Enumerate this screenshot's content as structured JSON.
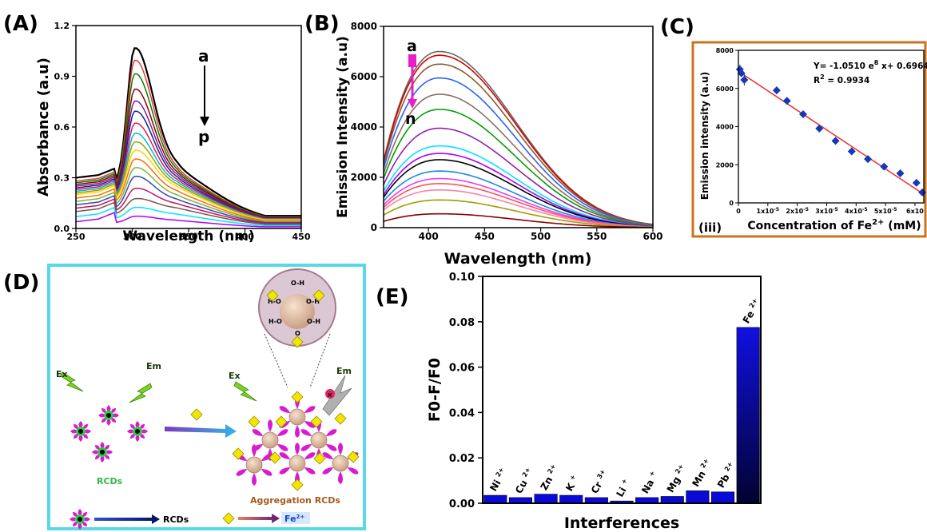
{
  "panels": {
    "A": {
      "label": "(A)",
      "arrow_top": "a",
      "arrow_bottom": "p"
    },
    "B": {
      "label": "(B)",
      "arrow_top": "a",
      "arrow_bottom": "n"
    },
    "C": {
      "label": "(C)",
      "sub_label": "(iii)",
      "equation": "Y= -1.0510 e",
      "equation_exp": "8",
      "equation_tail": " x+ 0.6964",
      "r2_base": "R",
      "r2_exp": "2",
      "r2_tail": " = 0.9934"
    },
    "D": {
      "label": "(D)",
      "ex": "Ex",
      "em": "Em",
      "rcds": "RCDs",
      "aggregation": "Aggregation RCDs",
      "legend_rcds": "RCDs",
      "legend_fe": "Fe",
      "legend_fe_sup": "2+"
    },
    "E": {
      "label": "(E)"
    }
  },
  "colors": {
    "A_curves": [
      "#000000",
      "#e53935",
      "#008000",
      "#8b0000",
      "#7a1fa2",
      "#1a237e",
      "#d81b60",
      "#00bcd4",
      "#9e9e00",
      "#ffd600",
      "#ff6d00",
      "#7cb342",
      "#3949ab",
      "#c51162",
      "#795548",
      "#00e5ff",
      "#aa00ff"
    ],
    "B_curves": [
      "#666666",
      "#d50000",
      "#8b5a2b",
      "#2962ff",
      "#8d6e63",
      "#00a000",
      "#8e24aa",
      "#00e5ff",
      "#aa00ff",
      "#000000",
      "#1e88e5",
      "#e040fb",
      "#ff5252",
      "#ff80ab",
      "#9e9e00",
      "#8b0000"
    ],
    "fit_line": "#e53935",
    "points": "#1537b8",
    "bar": "#0a0ad8",
    "frame_C": "#c8741f",
    "frame_D": "#57d9e6"
  },
  "chart_data": [
    {
      "panel": "A",
      "type": "line",
      "xlabel": "Wavelength (nm)",
      "ylabel": "Absorbance (a.u)",
      "xlim": [
        250,
        450
      ],
      "ylim": [
        0.0,
        1.2
      ],
      "xticks": [
        "250",
        "300",
        "350",
        "400",
        "450"
      ],
      "yticks": [
        "0.0",
        "0.3",
        "0.6",
        "0.9",
        "1.2"
      ],
      "peak_x": 302,
      "series": [
        {
          "base": 0.3,
          "peak": 1.05
        },
        {
          "base": 0.28,
          "peak": 0.98
        },
        {
          "base": 0.27,
          "peak": 0.9
        },
        {
          "base": 0.26,
          "peak": 0.81
        },
        {
          "base": 0.25,
          "peak": 0.74
        },
        {
          "base": 0.24,
          "peak": 0.68
        },
        {
          "base": 0.23,
          "peak": 0.61
        },
        {
          "base": 0.22,
          "peak": 0.55
        },
        {
          "base": 0.21,
          "peak": 0.5
        },
        {
          "base": 0.2,
          "peak": 0.45
        },
        {
          "base": 0.18,
          "peak": 0.4
        },
        {
          "base": 0.16,
          "peak": 0.35
        },
        {
          "base": 0.14,
          "peak": 0.3
        },
        {
          "base": 0.12,
          "peak": 0.23
        },
        {
          "base": 0.1,
          "peak": 0.17
        },
        {
          "base": 0.07,
          "peak": 0.12
        },
        {
          "base": 0.04,
          "peak": 0.07
        }
      ]
    },
    {
      "panel": "B",
      "type": "line",
      "xlabel": "Wavelength (nm)",
      "ylabel": "Emission Intensity (a.u)",
      "xlim": [
        360,
        600
      ],
      "ylim": [
        0,
        8000
      ],
      "xticks": [
        "400",
        "450",
        "500",
        "550",
        "600"
      ],
      "yticks": [
        "0",
        "2000",
        "4000",
        "6000",
        "8000"
      ],
      "peak_x": 410,
      "series": [
        {
          "peak": 7000,
          "start": 2650
        },
        {
          "peak": 6850,
          "start": 2600
        },
        {
          "peak": 6500,
          "start": 2500
        },
        {
          "peak": 5950,
          "start": 2350
        },
        {
          "peak": 5300,
          "start": 2150
        },
        {
          "peak": 4700,
          "start": 1950
        },
        {
          "peak": 3950,
          "start": 1700
        },
        {
          "peak": 3250,
          "start": 1450
        },
        {
          "peak": 2950,
          "start": 1300
        },
        {
          "peak": 2700,
          "start": 1200
        },
        {
          "peak": 2250,
          "start": 1050
        },
        {
          "peak": 1950,
          "start": 900
        },
        {
          "peak": 1750,
          "start": 800
        },
        {
          "peak": 1500,
          "start": 700
        },
        {
          "peak": 1100,
          "start": 500
        },
        {
          "peak": 550,
          "start": 250
        }
      ]
    },
    {
      "panel": "C",
      "type": "scatter",
      "xlabel": "Concentration of Fe",
      "xlabel_sup": "2+",
      "xlabel_tail": " (mM)",
      "ylabel": "Emission intensity (a.u)",
      "xlim": [
        0,
        6.3
      ],
      "ylim": [
        0,
        8000
      ],
      "xticks": [
        {
          "v": 0,
          "t": "0"
        },
        {
          "v": 1,
          "t": "1x10",
          "sup": "-5"
        },
        {
          "v": 2,
          "t": "2x10",
          "sup": "-5"
        },
        {
          "v": 3,
          "t": "3x10",
          "sup": "-5"
        },
        {
          "v": 4,
          "t": "4x10",
          "sup": "-5"
        },
        {
          "v": 5,
          "t": "5x10",
          "sup": "-5"
        },
        {
          "v": 6,
          "t": "6x10",
          "sup": ""
        }
      ],
      "yticks": [
        "0",
        "2000",
        "4000",
        "6000",
        "8000"
      ],
      "x_unit": "x10^-5 mM",
      "points": [
        {
          "x": 0.05,
          "y": 7000,
          "err": 250
        },
        {
          "x": 0.1,
          "y": 6800,
          "err": 200
        },
        {
          "x": 0.2,
          "y": 6450,
          "err": 300
        },
        {
          "x": 1.3,
          "y": 5900,
          "err": 200
        },
        {
          "x": 1.65,
          "y": 5350,
          "err": 200
        },
        {
          "x": 2.2,
          "y": 4650,
          "err": 150
        },
        {
          "x": 2.75,
          "y": 3900,
          "err": 150
        },
        {
          "x": 3.3,
          "y": 3250,
          "err": 150
        },
        {
          "x": 3.85,
          "y": 2700,
          "err": 100
        },
        {
          "x": 4.4,
          "y": 2300,
          "err": 100
        },
        {
          "x": 4.95,
          "y": 1900,
          "err": 100
        },
        {
          "x": 5.5,
          "y": 1550,
          "err": 100
        },
        {
          "x": 6.05,
          "y": 1050,
          "err": 100
        },
        {
          "x": 6.25,
          "y": 550,
          "err": 80
        }
      ],
      "fit": {
        "x0": 0,
        "y0": 6900,
        "x1": 6.3,
        "y1": 450
      }
    },
    {
      "panel": "E",
      "type": "bar",
      "xlabel": "Interferences",
      "ylabel": "F0-F/F0",
      "ylim": [
        0,
        0.1
      ],
      "yticks": [
        "0.00",
        "0.02",
        "0.04",
        "0.06",
        "0.08",
        "0.10"
      ],
      "categories": [
        {
          "ion": "Ni",
          "charge": "2+"
        },
        {
          "ion": "Cu",
          "charge": "2+"
        },
        {
          "ion": "Zn",
          "charge": "2+"
        },
        {
          "ion": "K",
          "charge": "+"
        },
        {
          "ion": "Cr",
          "charge": "3+"
        },
        {
          "ion": "Li",
          "charge": "+"
        },
        {
          "ion": "Na",
          "charge": "+"
        },
        {
          "ion": "Mg",
          "charge": "2+"
        },
        {
          "ion": "Mn",
          "charge": "2+"
        },
        {
          "ion": "Pb",
          "charge": "2+"
        },
        {
          "ion": "Fe",
          "charge": "2+"
        }
      ],
      "values": [
        0.0035,
        0.0025,
        0.004,
        0.0035,
        0.0025,
        0.001,
        0.0025,
        0.003,
        0.0055,
        0.005,
        0.0775
      ]
    }
  ]
}
